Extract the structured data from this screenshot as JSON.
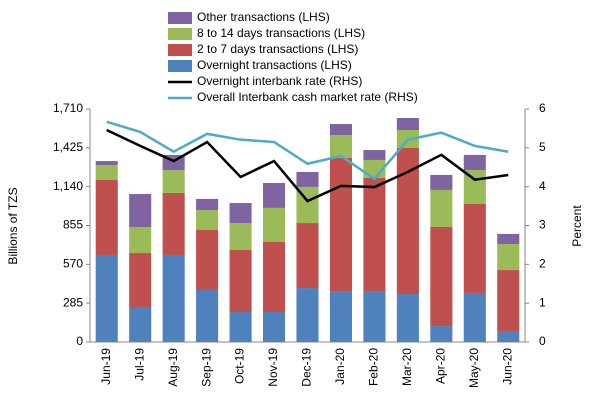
{
  "chart_data": {
    "type": "bar-line",
    "y_label": "Billions of TZS",
    "y2_label": "Percent",
    "categories": [
      "Jun-19",
      "Jul-19",
      "Aug-19",
      "Sep-19",
      "Oct-19",
      "Nov-19",
      "Dec-19",
      "Jan-20",
      "Feb-20",
      "Mar-20",
      "Apr-20",
      "May-20",
      "Jun-20"
    ],
    "ylim": [
      0,
      1710
    ],
    "yticks": [
      0,
      285,
      570,
      855,
      {
        "value": 1140,
        "label": "1,140"
      },
      {
        "value": 1425,
        "label": "1,425"
      },
      {
        "value": 1710,
        "label": "1,710"
      }
    ],
    "y2lim": [
      0,
      6
    ],
    "y2ticks": [
      0,
      1,
      2,
      3,
      4,
      5,
      6
    ],
    "series": [
      {
        "name": "Overnight transactions (LHS)",
        "kind": "bar",
        "color": "#4f81bd",
        "values": [
          639,
          250,
          639,
          382,
          220,
          220,
          396,
          374,
          374,
          352,
          117,
          360,
          81
        ]
      },
      {
        "name": "2 to 7 days transactions (LHS)",
        "kind": "bar",
        "color": "#c0504d",
        "values": [
          550,
          403,
          455,
          440,
          455,
          514,
          477,
          977,
          830,
          1072,
          727,
          653,
          447
        ]
      },
      {
        "name": "8 to 14 days transactions (LHS)",
        "kind": "bar",
        "color": "#9bbb59",
        "values": [
          110,
          191,
          168,
          147,
          198,
          250,
          265,
          168,
          132,
          132,
          272,
          249,
          191
        ]
      },
      {
        "name": "Other transactions (LHS)",
        "kind": "bar",
        "color": "#8064a2",
        "values": [
          29,
          242,
          111,
          81,
          147,
          183,
          110,
          81,
          73,
          88,
          110,
          111,
          74
        ]
      },
      {
        "name": "Overnight interbank rate (RHS)",
        "kind": "line",
        "axis": "y2",
        "color": "#000000",
        "values": [
          5.46,
          5.05,
          4.66,
          5.15,
          4.25,
          4.66,
          3.63,
          4.02,
          3.99,
          4.38,
          4.82,
          4.18,
          4.3
        ]
      },
      {
        "name": "Overall Interbank cash market rate (RHS)",
        "kind": "line",
        "axis": "y2",
        "color": "#4bacc6",
        "values": [
          5.67,
          5.41,
          4.9,
          5.36,
          5.21,
          5.15,
          4.59,
          4.79,
          4.2,
          5.21,
          5.39,
          5.05,
          4.9
        ]
      }
    ]
  }
}
